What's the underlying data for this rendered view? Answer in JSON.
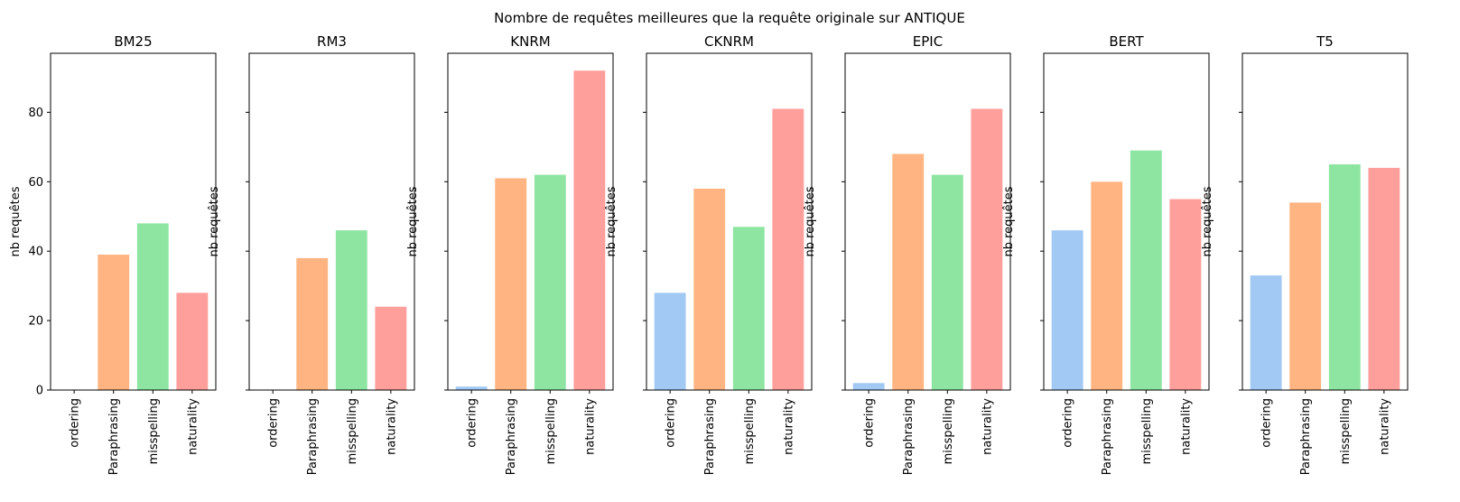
{
  "figure": {
    "suptitle": "Nombre de requêtes meilleures que la requête originale sur ANTIQUE"
  },
  "chart_data": [
    {
      "type": "bar",
      "title": "BM25",
      "ylabel": "nb requêtes",
      "categories": [
        "ordering",
        "Paraphrasing",
        "misspelling",
        "naturality"
      ],
      "values": [
        0,
        39,
        48,
        28
      ],
      "ylim": [
        0,
        97
      ],
      "yticks": [
        0,
        20,
        40,
        60,
        80
      ]
    },
    {
      "type": "bar",
      "title": "RM3",
      "ylabel": "nb requêtes",
      "categories": [
        "ordering",
        "Paraphrasing",
        "misspelling",
        "naturality"
      ],
      "values": [
        0,
        38,
        46,
        24
      ],
      "ylim": [
        0,
        97
      ],
      "yticks": [
        0,
        20,
        40,
        60,
        80
      ]
    },
    {
      "type": "bar",
      "title": "KNRM",
      "ylabel": "nb requêtes",
      "categories": [
        "ordering",
        "Paraphrasing",
        "misspelling",
        "naturality"
      ],
      "values": [
        1,
        61,
        62,
        92
      ],
      "ylim": [
        0,
        97
      ],
      "yticks": [
        0,
        20,
        40,
        60,
        80
      ]
    },
    {
      "type": "bar",
      "title": "CKNRM",
      "ylabel": "nb requêtes",
      "categories": [
        "ordering",
        "Paraphrasing",
        "misspelling",
        "naturality"
      ],
      "values": [
        28,
        58,
        47,
        81
      ],
      "ylim": [
        0,
        97
      ],
      "yticks": [
        0,
        20,
        40,
        60,
        80
      ]
    },
    {
      "type": "bar",
      "title": "EPIC",
      "ylabel": "nb requêtes",
      "categories": [
        "ordering",
        "Paraphrasing",
        "misspelling",
        "naturality"
      ],
      "values": [
        2,
        68,
        62,
        81
      ],
      "ylim": [
        0,
        97
      ],
      "yticks": [
        0,
        20,
        40,
        60,
        80
      ]
    },
    {
      "type": "bar",
      "title": "BERT",
      "ylabel": "nb requêtes",
      "categories": [
        "ordering",
        "Paraphrasing",
        "misspelling",
        "naturality"
      ],
      "values": [
        46,
        60,
        69,
        55
      ],
      "ylim": [
        0,
        97
      ],
      "yticks": [
        0,
        20,
        40,
        60,
        80
      ]
    },
    {
      "type": "bar",
      "title": "T5",
      "ylabel": "nb requêtes",
      "categories": [
        "ordering",
        "Paraphrasing",
        "misspelling",
        "naturality"
      ],
      "values": [
        33,
        54,
        65,
        64
      ],
      "ylim": [
        0,
        97
      ],
      "yticks": [
        0,
        20,
        40,
        60,
        80
      ]
    }
  ],
  "colors": [
    "#a1c9f4",
    "#ffb482",
    "#8de5a1",
    "#ff9f9b"
  ],
  "shared_y": true,
  "grid": false
}
